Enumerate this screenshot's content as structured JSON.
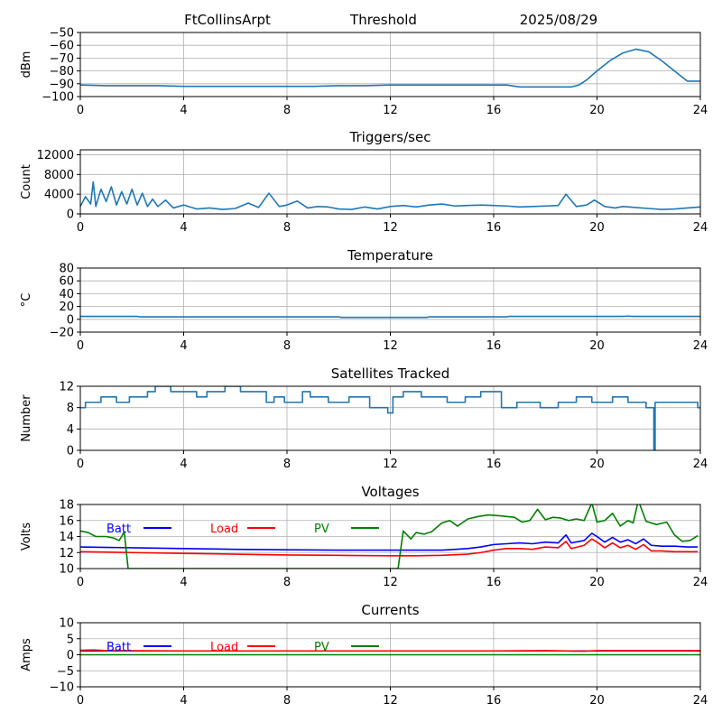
{
  "header": {
    "station": "FtCollinsArpt",
    "mode": "Threshold",
    "date": "2025/08/29"
  },
  "chart_data": [
    {
      "id": "threshold",
      "type": "line",
      "title": "",
      "xlabel": "",
      "ylabel": "dBm",
      "xlim": [
        0,
        24
      ],
      "ylim": [
        -100,
        -50
      ],
      "xticks": [
        0,
        4,
        8,
        12,
        16,
        20,
        24
      ],
      "yticks": [
        -100,
        -90,
        -80,
        -70,
        -60,
        -50
      ],
      "grid": true,
      "series": [
        {
          "color": "#1f77b4",
          "x": [
            0,
            1,
            2,
            3,
            4,
            5,
            6,
            7,
            8,
            9,
            10,
            11,
            12,
            13,
            14,
            15,
            16,
            16.5,
            17,
            18,
            19,
            19.3,
            19.6,
            20,
            20.5,
            21,
            21.5,
            22,
            22.5,
            23,
            23.5,
            24
          ],
          "y": [
            -91,
            -91.5,
            -91.5,
            -91.5,
            -92,
            -92,
            -92,
            -92,
            -92,
            -92,
            -91.5,
            -91.5,
            -91,
            -91,
            -91,
            -91,
            -91,
            -91,
            -92.5,
            -92.5,
            -92.5,
            -91,
            -87,
            -80,
            -72,
            -66,
            -63,
            -65,
            -72,
            -80,
            -88,
            -88
          ]
        }
      ]
    },
    {
      "id": "triggers",
      "type": "line",
      "title": "Triggers/sec",
      "xlabel": "",
      "ylabel": "Count",
      "xlim": [
        0,
        24
      ],
      "ylim": [
        0,
        13000
      ],
      "xticks": [
        0,
        4,
        8,
        12,
        16,
        20,
        24
      ],
      "yticks": [
        0,
        4000,
        8000,
        12000
      ],
      "grid": true,
      "series": [
        {
          "color": "#1f77b4",
          "x": [
            0,
            0.2,
            0.4,
            0.5,
            0.6,
            0.8,
            1.0,
            1.2,
            1.4,
            1.6,
            1.8,
            2.0,
            2.2,
            2.4,
            2.6,
            2.8,
            3.0,
            3.3,
            3.6,
            4.0,
            4.5,
            5.0,
            5.5,
            6.0,
            6.5,
            6.9,
            7.3,
            7.7,
            8.0,
            8.4,
            8.8,
            9.2,
            9.6,
            10.0,
            10.5,
            11.0,
            11.5,
            12.0,
            12.5,
            13.0,
            13.5,
            14.0,
            14.5,
            15.0,
            15.5,
            16.0,
            16.5,
            17.0,
            17.5,
            18.0,
            18.5,
            18.8,
            19.2,
            19.6,
            19.9,
            20.3,
            20.7,
            21.0,
            21.5,
            22.0,
            22.5,
            23.0,
            23.5,
            24.0
          ],
          "y": [
            1500,
            3500,
            2000,
            6500,
            1500,
            5000,
            2500,
            5500,
            1800,
            4500,
            2000,
            5000,
            1800,
            4200,
            1500,
            3000,
            1500,
            2800,
            1200,
            1800,
            1000,
            1200,
            900,
            1100,
            2200,
            1300,
            4200,
            1500,
            1800,
            2600,
            1200,
            1500,
            1400,
            1000,
            900,
            1400,
            1000,
            1500,
            1700,
            1400,
            1800,
            2000,
            1600,
            1700,
            1800,
            1700,
            1600,
            1400,
            1500,
            1600,
            1700,
            4000,
            1500,
            1800,
            2800,
            1500,
            1200,
            1500,
            1300,
            1100,
            900,
            1000,
            1200,
            1400
          ]
        }
      ]
    },
    {
      "id": "temperature",
      "type": "line",
      "title": "Temperature",
      "xlabel": "",
      "ylabel": "°C",
      "xlim": [
        0,
        24
      ],
      "ylim": [
        -20,
        80
      ],
      "xticks": [
        0,
        4,
        8,
        12,
        16,
        20,
        24
      ],
      "yticks": [
        -20,
        0,
        20,
        40,
        60,
        80
      ],
      "grid": true,
      "series": [
        {
          "color": "#1f77b4",
          "x": [
            0,
            2.2,
            2.3,
            10,
            10.1,
            13.4,
            13.5,
            16.5,
            16.6,
            21,
            21.2,
            21.4,
            24
          ],
          "y": [
            4.5,
            4.5,
            3.8,
            3.8,
            3.0,
            3.0,
            3.8,
            3.8,
            4.5,
            4.5,
            5.0,
            4.5,
            4.5
          ]
        }
      ]
    },
    {
      "id": "satellites",
      "type": "line",
      "title": "Satellites Tracked",
      "xlabel": "",
      "ylabel": "Number",
      "xlim": [
        0,
        24
      ],
      "ylim": [
        0,
        12
      ],
      "xticks": [
        0,
        4,
        8,
        12,
        16,
        20,
        24
      ],
      "yticks": [
        0,
        4,
        8,
        12
      ],
      "grid": true,
      "series": [
        {
          "color": "#1f77b4",
          "x": [
            0,
            0.2,
            0.2,
            0.8,
            0.8,
            1.4,
            1.4,
            1.9,
            1.9,
            2.6,
            2.6,
            2.9,
            2.9,
            3.5,
            3.5,
            4.5,
            4.5,
            4.9,
            4.9,
            5.6,
            5.6,
            6.2,
            6.2,
            7.2,
            7.2,
            7.5,
            7.5,
            7.9,
            7.9,
            8.6,
            8.6,
            8.9,
            8.9,
            9.6,
            9.6,
            10.4,
            10.4,
            11.2,
            11.2,
            11.9,
            11.9,
            12.1,
            12.1,
            12.5,
            12.5,
            13.2,
            13.2,
            14.2,
            14.2,
            14.9,
            14.9,
            15.5,
            15.5,
            16.3,
            16.3,
            16.9,
            16.9,
            17.8,
            17.8,
            18.5,
            18.5,
            19.2,
            19.2,
            19.8,
            19.8,
            20.6,
            20.6,
            21.2,
            21.2,
            21.9,
            21.9,
            22.2,
            22.2,
            22.25,
            22.25,
            23.9,
            23.9,
            24
          ],
          "y": [
            8,
            8,
            9,
            9,
            10,
            10,
            9,
            9,
            10,
            10,
            11,
            11,
            12,
            12,
            11,
            11,
            10,
            10,
            11,
            11,
            12,
            12,
            11,
            11,
            9,
            9,
            10,
            10,
            9,
            9,
            11,
            11,
            10,
            10,
            9,
            9,
            10,
            10,
            8,
            8,
            7,
            7,
            10,
            10,
            11,
            11,
            10,
            10,
            9,
            9,
            10,
            10,
            11,
            11,
            8,
            8,
            9,
            9,
            8,
            8,
            9,
            9,
            10,
            10,
            9,
            9,
            10,
            10,
            9,
            9,
            8,
            8,
            0,
            0,
            9,
            9,
            8,
            8
          ]
        }
      ]
    },
    {
      "id": "voltages",
      "type": "line",
      "title": "Voltages",
      "xlabel": "",
      "ylabel": "Volts",
      "xlim": [
        0,
        24
      ],
      "ylim": [
        10,
        18
      ],
      "xticks": [
        0,
        4,
        8,
        12,
        16,
        20,
        24
      ],
      "yticks": [
        10,
        12,
        14,
        16,
        18
      ],
      "grid": true,
      "legend": "top-left",
      "series": [
        {
          "name": "Batt",
          "color": "#0000ff",
          "x": [
            0,
            2,
            4,
            6,
            8,
            10,
            12,
            13,
            14,
            15,
            15.5,
            16,
            16.5,
            17,
            17.5,
            18,
            18.5,
            18.8,
            19,
            19.5,
            19.8,
            20,
            20.3,
            20.6,
            20.9,
            21.2,
            21.5,
            21.8,
            22.1,
            22.5,
            23,
            23.5,
            23.9
          ],
          "y": [
            12.7,
            12.6,
            12.5,
            12.4,
            12.35,
            12.3,
            12.3,
            12.3,
            12.3,
            12.5,
            12.7,
            13.0,
            13.1,
            13.2,
            13.1,
            13.3,
            13.2,
            14.2,
            13.2,
            13.5,
            14.4,
            14.0,
            13.3,
            13.9,
            13.3,
            13.6,
            13.1,
            13.7,
            12.9,
            12.8,
            12.8,
            12.7,
            12.7
          ],
          "label": "Batt"
        },
        {
          "name": "Load",
          "color": "#ff0000",
          "x": [
            0,
            2,
            4,
            6,
            8,
            10,
            12,
            13,
            14,
            15,
            15.5,
            16,
            16.5,
            17,
            17.5,
            18,
            18.5,
            18.8,
            19,
            19.5,
            19.8,
            20,
            20.3,
            20.6,
            20.9,
            21.2,
            21.5,
            21.8,
            22.1,
            22.5,
            23,
            23.5,
            23.9
          ],
          "y": [
            12.1,
            12.0,
            11.9,
            11.8,
            11.7,
            11.65,
            11.6,
            11.6,
            11.65,
            11.8,
            12.0,
            12.3,
            12.5,
            12.5,
            12.4,
            12.7,
            12.6,
            13.4,
            12.5,
            12.9,
            13.7,
            13.3,
            12.6,
            13.2,
            12.6,
            12.9,
            12.4,
            13.0,
            12.2,
            12.2,
            12.1,
            12.1,
            12.1
          ],
          "label": "Load"
        },
        {
          "name": "PV",
          "color": "#008000",
          "x": [
            0,
            0.3,
            0.6,
            1.0,
            1.3,
            1.5,
            1.6,
            1.7,
            1.85,
            12.3,
            12.5,
            12.8,
            13.0,
            13.3,
            13.6,
            14.0,
            14.3,
            14.6,
            15.0,
            15.4,
            15.8,
            16.2,
            16.5,
            16.8,
            17.1,
            17.4,
            17.7,
            18.0,
            18.3,
            18.6,
            18.9,
            19.2,
            19.5,
            19.8,
            20.0,
            20.3,
            20.6,
            20.9,
            21.2,
            21.4,
            21.6,
            21.9,
            22.3,
            22.7,
            23.0,
            23.3,
            23.6,
            23.9
          ],
          "y": [
            14.7,
            14.5,
            14.0,
            14.0,
            13.8,
            13.5,
            14.0,
            14.6,
            10.0,
            10.0,
            14.7,
            13.7,
            14.5,
            14.3,
            14.6,
            15.7,
            16.0,
            15.3,
            16.2,
            16.5,
            16.7,
            16.6,
            16.5,
            16.4,
            15.8,
            16.0,
            17.4,
            16.1,
            16.4,
            16.3,
            16.0,
            16.2,
            16.0,
            18.2,
            15.8,
            16.0,
            16.9,
            15.3,
            16.0,
            15.7,
            18.5,
            15.9,
            15.5,
            15.8,
            14.2,
            13.4,
            13.5,
            14.1
          ],
          "label": "PV"
        }
      ]
    },
    {
      "id": "currents",
      "type": "line",
      "title": "Currents",
      "xlabel": "",
      "ylabel": "Amps",
      "xlim": [
        0,
        24
      ],
      "ylim": [
        -10,
        10
      ],
      "xticks": [
        0,
        4,
        8,
        12,
        16,
        20,
        24
      ],
      "yticks": [
        -10,
        -5,
        0,
        5,
        10
      ],
      "grid": true,
      "legend": "top-left",
      "series": [
        {
          "name": "Batt",
          "color": "#0000ff",
          "x": [
            0,
            24
          ],
          "y": [
            1.2,
            1.2
          ],
          "label": "Batt"
        },
        {
          "name": "Load",
          "color": "#ff0000",
          "x": [
            0,
            0.5,
            1,
            4,
            8,
            12,
            16,
            18,
            19.5,
            20,
            22,
            24
          ],
          "y": [
            1.4,
            1.5,
            1.3,
            1.2,
            1.2,
            1.2,
            1.2,
            1.3,
            1.1,
            1.3,
            1.3,
            1.3
          ],
          "label": "Load"
        },
        {
          "name": "PV",
          "color": "#008000",
          "x": [
            0,
            24
          ],
          "y": [
            0,
            0
          ],
          "label": "PV"
        }
      ]
    }
  ]
}
